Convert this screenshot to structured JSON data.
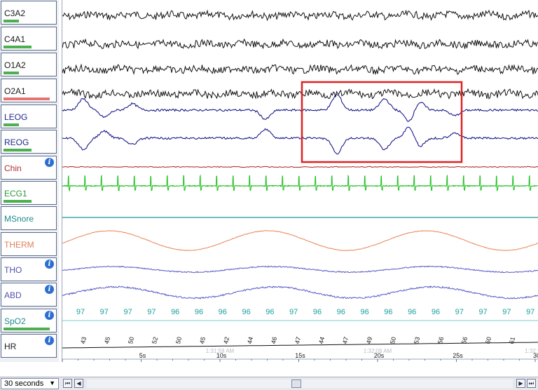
{
  "channels": [
    {
      "name": "C3A2",
      "label_color": "#1a1a1a",
      "bar_color": "#4caf50",
      "bar_width": 22,
      "info": false
    },
    {
      "name": "C4A1",
      "label_color": "#1a1a1a",
      "bar_color": "#4caf50",
      "bar_width": 40,
      "info": false
    },
    {
      "name": "O1A2",
      "label_color": "#1a1a1a",
      "bar_color": "#4caf50",
      "bar_width": 22,
      "info": false
    },
    {
      "name": "O2A1",
      "label_color": "#1a1a1a",
      "bar_color": "#e57373",
      "bar_width": 66,
      "info": false
    },
    {
      "name": "LEOG",
      "label_color": "#1e2a8a",
      "bar_color": "#4caf50",
      "bar_width": 22,
      "info": false
    },
    {
      "name": "REOG",
      "label_color": "#1e2a8a",
      "bar_color": "#4caf50",
      "bar_width": 40,
      "info": false
    },
    {
      "name": "Chin",
      "label_color": "#b03030",
      "bar_color": "#4caf50",
      "bar_width": 0,
      "info": true
    },
    {
      "name": "ECG1",
      "label_color": "#2a9a3a",
      "bar_color": "#4caf50",
      "bar_width": 40,
      "info": false
    },
    {
      "name": "MSnore",
      "label_color": "#1f8c8c",
      "bar_color": "#4caf50",
      "bar_width": 0,
      "info": false
    },
    {
      "name": "THERM",
      "label_color": "#e0805a",
      "bar_color": "#4caf50",
      "bar_width": 0,
      "info": false
    },
    {
      "name": "THO",
      "label_color": "#5050b0",
      "bar_color": "#4caf50",
      "bar_width": 0,
      "info": true
    },
    {
      "name": "ABD",
      "label_color": "#5050b0",
      "bar_color": "#4caf50",
      "bar_width": 0,
      "info": true
    },
    {
      "name": "SpO2",
      "label_color": "#1f8c8c",
      "bar_color": "#4caf50",
      "bar_width": 66,
      "info": true
    },
    {
      "name": "HR",
      "label_color": "#1a1a1a",
      "bar_color": "#4caf50",
      "bar_width": 0,
      "info": true
    }
  ],
  "info_glyph": "i",
  "spo2_values": [
    "97",
    "97",
    "97",
    "97",
    "96",
    "96",
    "96",
    "96",
    "96",
    "97",
    "96",
    "96",
    "96",
    "96",
    "96",
    "96",
    "97",
    "97",
    "97",
    "97"
  ],
  "hr_values": [
    "43",
    "45",
    "50",
    "52",
    "50",
    "45",
    "42",
    "44",
    "46",
    "47",
    "44",
    "47",
    "49",
    "50",
    "53",
    "56",
    "56",
    "60",
    "61"
  ],
  "axis": {
    "second_ticks": [
      "5s",
      "10s",
      "15s",
      "20s",
      "25s",
      "30"
    ],
    "time_labels": [
      "1:31:59 AM",
      "1:32:09 AM",
      "1:32:"
    ]
  },
  "duration": {
    "value": "30 seconds",
    "arrow": "▼"
  },
  "nav": {
    "first": "⏮",
    "prev": "◀",
    "next": "▶",
    "last": "⏭"
  },
  "colors": {
    "eeg": "#111111",
    "eog": "#1a1a8c",
    "chin": "#b02020",
    "ecg": "#22c022",
    "snore": "#1b9a9a",
    "therm": "#e8865a",
    "resp": "#5a5ac8",
    "selection": "#e02020"
  }
}
